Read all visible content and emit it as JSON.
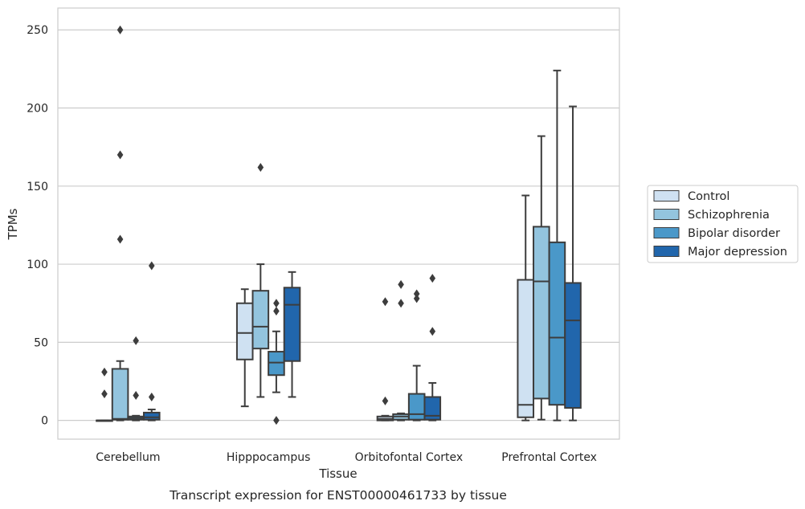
{
  "chart_data": {
    "type": "box",
    "caption": "Transcript expression for ENST00000461733 by tissue",
    "xlabel": "Tissue",
    "ylabel": "TPMs",
    "ylim": [
      -12,
      264
    ],
    "yticks": [
      0,
      50,
      100,
      150,
      200,
      250
    ],
    "grid": "horizontal",
    "legend_position": "right",
    "categories": [
      "Cerebellum",
      "Hipppocampus",
      "Orbitofontal Cortex",
      "Prefrontal Cortex"
    ],
    "series": [
      {
        "name": "Control",
        "color": "#cfe1f2",
        "boxes": [
          {
            "whislo": 0,
            "q1": 0,
            "med": 0,
            "q3": 0,
            "whishi": 0,
            "fliers": [
              17,
              31
            ]
          },
          {
            "whislo": 9,
            "q1": 39,
            "med": 56,
            "q3": 75,
            "whishi": 84,
            "fliers": []
          },
          {
            "whislo": 0,
            "q1": 0,
            "med": 1,
            "q3": 2.5,
            "whishi": 3,
            "fliers": [
              12.5,
              76
            ]
          },
          {
            "whislo": 0,
            "q1": 2,
            "med": 10,
            "q3": 90,
            "whishi": 144,
            "fliers": []
          }
        ]
      },
      {
        "name": "Schizophrenia",
        "color": "#93c4de",
        "boxes": [
          {
            "whislo": 0,
            "q1": 0.5,
            "med": 1,
            "q3": 33,
            "whishi": 38,
            "fliers": [
              116,
              170,
              250
            ]
          },
          {
            "whislo": 15,
            "q1": 46,
            "med": 60,
            "q3": 83,
            "whishi": 100,
            "fliers": [
              162
            ]
          },
          {
            "whislo": 0,
            "q1": 0.5,
            "med": 2.5,
            "q3": 4,
            "whishi": 4.5,
            "fliers": [
              75,
              87
            ]
          },
          {
            "whislo": 0.5,
            "q1": 14,
            "med": 89,
            "q3": 124,
            "whishi": 182,
            "fliers": []
          }
        ]
      },
      {
        "name": "Bipolar disorder",
        "color": "#4a98c9",
        "boxes": [
          {
            "whislo": 0,
            "q1": 0.5,
            "med": 1.5,
            "q3": 2.5,
            "whishi": 3,
            "fliers": [
              16,
              51
            ]
          },
          {
            "whislo": 18,
            "q1": 29,
            "med": 37,
            "q3": 44,
            "whishi": 57,
            "fliers": [
              0,
              70,
              75
            ]
          },
          {
            "whislo": 0,
            "q1": 0.5,
            "med": 4,
            "q3": 17,
            "whishi": 35,
            "fliers": [
              78,
              81
            ]
          },
          {
            "whislo": 0,
            "q1": 10,
            "med": 53,
            "q3": 114,
            "whishi": 224,
            "fliers": []
          }
        ]
      },
      {
        "name": "Major depression",
        "color": "#2166ac",
        "boxes": [
          {
            "whislo": 0,
            "q1": 0.5,
            "med": 2,
            "q3": 5,
            "whishi": 7,
            "fliers": [
              15,
              99
            ]
          },
          {
            "whislo": 15,
            "q1": 38,
            "med": 74,
            "q3": 85,
            "whishi": 95,
            "fliers": []
          },
          {
            "whislo": 0,
            "q1": 0.5,
            "med": 3,
            "q3": 15,
            "whishi": 24,
            "fliers": [
              57,
              91
            ]
          },
          {
            "whislo": 0,
            "q1": 8,
            "med": 64,
            "q3": 88,
            "whishi": 201,
            "fliers": []
          }
        ]
      }
    ],
    "colors": {
      "grid": "#cccccc",
      "frame": "#cccccc",
      "lines": "#3d3d3d",
      "text": "#262626"
    }
  }
}
